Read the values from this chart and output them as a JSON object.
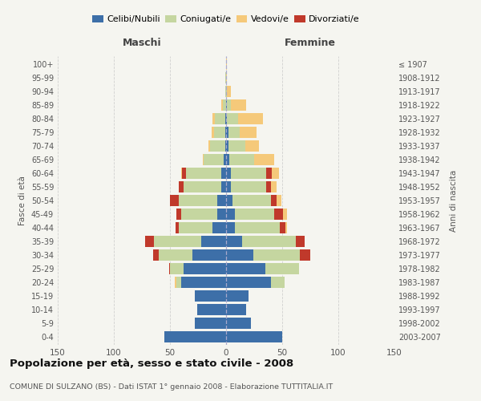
{
  "age_groups": [
    "0-4",
    "5-9",
    "10-14",
    "15-19",
    "20-24",
    "25-29",
    "30-34",
    "35-39",
    "40-44",
    "45-49",
    "50-54",
    "55-59",
    "60-64",
    "65-69",
    "70-74",
    "75-79",
    "80-84",
    "85-89",
    "90-94",
    "95-99",
    "100+"
  ],
  "birth_years": [
    "2003-2007",
    "1998-2002",
    "1993-1997",
    "1988-1992",
    "1983-1987",
    "1978-1982",
    "1973-1977",
    "1968-1972",
    "1963-1967",
    "1958-1962",
    "1953-1957",
    "1948-1952",
    "1943-1947",
    "1938-1942",
    "1933-1937",
    "1928-1932",
    "1923-1927",
    "1918-1922",
    "1913-1917",
    "1908-1912",
    "≤ 1907"
  ],
  "male_celibi": [
    55,
    28,
    26,
    28,
    40,
    38,
    30,
    22,
    12,
    8,
    8,
    4,
    4,
    2,
    1,
    1,
    1,
    0,
    0,
    0,
    0
  ],
  "male_coniugati": [
    0,
    0,
    0,
    0,
    4,
    12,
    30,
    42,
    30,
    32,
    34,
    34,
    32,
    18,
    13,
    10,
    9,
    3,
    1,
    1,
    0
  ],
  "male_vedovi": [
    0,
    0,
    0,
    0,
    2,
    0,
    0,
    0,
    0,
    0,
    0,
    0,
    1,
    1,
    2,
    2,
    2,
    1,
    0,
    0,
    0
  ],
  "male_divorziati": [
    0,
    0,
    0,
    0,
    0,
    1,
    5,
    8,
    3,
    4,
    8,
    4,
    3,
    0,
    0,
    0,
    0,
    0,
    0,
    0,
    0
  ],
  "female_celibi": [
    50,
    22,
    18,
    20,
    40,
    35,
    24,
    14,
    8,
    8,
    6,
    4,
    4,
    3,
    2,
    2,
    1,
    1,
    0,
    0,
    0
  ],
  "female_coniugati": [
    0,
    0,
    0,
    0,
    12,
    30,
    42,
    48,
    40,
    35,
    34,
    32,
    32,
    22,
    15,
    10,
    10,
    3,
    1,
    0,
    0
  ],
  "female_vedovi": [
    0,
    0,
    0,
    0,
    0,
    0,
    0,
    0,
    1,
    3,
    4,
    5,
    6,
    18,
    12,
    15,
    22,
    14,
    3,
    1,
    1
  ],
  "female_divorziati": [
    0,
    0,
    0,
    0,
    0,
    0,
    9,
    8,
    5,
    8,
    5,
    4,
    5,
    0,
    0,
    0,
    0,
    0,
    0,
    0,
    0
  ],
  "color_celibi": "#3d6fa8",
  "color_coniugati": "#c5d6a0",
  "color_vedovi": "#f5c97a",
  "color_divorziati": "#c0392b",
  "title": "Popolazione per età, sesso e stato civile - 2008",
  "subtitle": "COMUNE DI SULZANO (BS) - Dati ISTAT 1° gennaio 2008 - Elaborazione TUTTITALIA.IT",
  "label_maschi": "Maschi",
  "label_femmine": "Femmine",
  "ylabel_left": "Fasce di età",
  "ylabel_right": "Anni di nascita",
  "xlim": 150,
  "background_color": "#f5f5f0",
  "grid_color": "#cccccc"
}
